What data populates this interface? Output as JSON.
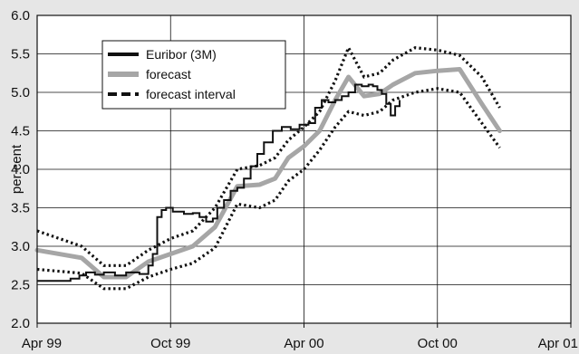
{
  "chart_data": {
    "type": "line",
    "title": "",
    "xlabel": "",
    "ylabel": "per cent",
    "ylim": [
      2.0,
      6.0
    ],
    "yticks": [
      "2.0",
      "2.5",
      "3.0",
      "3.5",
      "4.0",
      "4.5",
      "5.0",
      "5.5",
      "6.0"
    ],
    "xticks": [
      "Apr 99",
      "Oct 99",
      "Apr 00",
      "Oct 00",
      "Apr 01"
    ],
    "grid": "horizontal",
    "legend_position": "top-left",
    "colors": {
      "euribor": "#111111",
      "forecast": "#a6a6a6",
      "interval": "#111111",
      "grid": "#111111",
      "background": "#e6e6e6",
      "plot_background": "#ffffff"
    },
    "series": [
      {
        "name": "Euribor (3M)",
        "style": "solid-black",
        "points": [
          [
            0.0,
            2.55
          ],
          [
            1.0,
            2.55
          ],
          [
            1.5,
            2.58
          ],
          [
            1.9,
            2.62
          ],
          [
            2.2,
            2.66
          ],
          [
            2.6,
            2.63
          ],
          [
            3.0,
            2.66
          ],
          [
            3.5,
            2.62
          ],
          [
            4.0,
            2.66
          ],
          [
            4.6,
            2.64
          ],
          [
            5.0,
            2.75
          ],
          [
            5.2,
            2.9
          ],
          [
            5.4,
            3.38
          ],
          [
            5.6,
            3.47
          ],
          [
            5.8,
            3.5
          ],
          [
            6.1,
            3.45
          ],
          [
            6.6,
            3.42
          ],
          [
            7.0,
            3.43
          ],
          [
            7.3,
            3.38
          ],
          [
            7.6,
            3.32
          ],
          [
            7.9,
            3.36
          ],
          [
            8.1,
            3.5
          ],
          [
            8.4,
            3.6
          ],
          [
            8.7,
            3.72
          ],
          [
            9.0,
            3.76
          ],
          [
            9.3,
            3.88
          ],
          [
            9.6,
            4.04
          ],
          [
            9.9,
            4.2
          ],
          [
            10.2,
            4.35
          ],
          [
            10.6,
            4.5
          ],
          [
            11.0,
            4.55
          ],
          [
            11.4,
            4.52
          ],
          [
            11.8,
            4.58
          ],
          [
            12.2,
            4.6
          ],
          [
            12.5,
            4.8
          ],
          [
            12.8,
            4.9
          ],
          [
            13.1,
            4.87
          ],
          [
            13.4,
            4.9
          ],
          [
            13.7,
            4.95
          ],
          [
            14.0,
            5.0
          ],
          [
            14.3,
            5.1
          ],
          [
            14.6,
            5.08
          ],
          [
            14.9,
            5.1
          ],
          [
            15.1,
            5.08
          ],
          [
            15.3,
            5.03
          ],
          [
            15.5,
            4.98
          ],
          [
            15.7,
            4.85
          ],
          [
            15.9,
            4.7
          ],
          [
            16.1,
            4.82
          ],
          [
            16.3,
            4.9
          ]
        ]
      },
      {
        "name": "forecast",
        "style": "thick-gray",
        "points": [
          [
            0.0,
            2.95
          ],
          [
            2.0,
            2.85
          ],
          [
            3.0,
            2.6
          ],
          [
            4.0,
            2.6
          ],
          [
            5.0,
            2.8
          ],
          [
            6.0,
            2.9
          ],
          [
            7.0,
            3.0
          ],
          [
            8.0,
            3.25
          ],
          [
            9.0,
            3.78
          ],
          [
            10.0,
            3.8
          ],
          [
            10.7,
            3.88
          ],
          [
            11.3,
            4.15
          ],
          [
            12.0,
            4.3
          ],
          [
            12.7,
            4.5
          ],
          [
            13.4,
            4.9
          ],
          [
            14.0,
            5.2
          ],
          [
            14.7,
            4.95
          ],
          [
            15.4,
            4.98
          ],
          [
            16.0,
            5.1
          ],
          [
            17.0,
            5.25
          ],
          [
            18.0,
            5.28
          ],
          [
            19.0,
            5.3
          ],
          [
            20.0,
            4.85
          ],
          [
            20.8,
            4.5
          ]
        ]
      },
      {
        "name": "forecast interval",
        "style": "dotted-black",
        "segments": [
          [
            [
              0.0,
              3.2
            ],
            [
              2.0,
              3.0
            ],
            [
              3.0,
              2.75
            ],
            [
              4.0,
              2.75
            ],
            [
              5.0,
              2.95
            ],
            [
              6.0,
              3.1
            ],
            [
              7.0,
              3.2
            ],
            [
              8.0,
              3.5
            ],
            [
              9.0,
              4.0
            ],
            [
              10.0,
              4.05
            ],
            [
              10.7,
              4.15
            ],
            [
              11.3,
              4.38
            ],
            [
              12.0,
              4.55
            ],
            [
              12.7,
              4.75
            ],
            [
              13.4,
              5.15
            ],
            [
              14.0,
              5.58
            ],
            [
              14.7,
              5.2
            ],
            [
              15.4,
              5.25
            ],
            [
              16.0,
              5.42
            ],
            [
              17.0,
              5.58
            ],
            [
              18.0,
              5.55
            ],
            [
              19.0,
              5.48
            ],
            [
              20.0,
              5.2
            ],
            [
              20.8,
              4.8
            ]
          ],
          [
            [
              0.0,
              2.7
            ],
            [
              2.0,
              2.65
            ],
            [
              3.0,
              2.45
            ],
            [
              4.0,
              2.45
            ],
            [
              5.0,
              2.6
            ],
            [
              6.0,
              2.7
            ],
            [
              7.0,
              2.78
            ],
            [
              8.0,
              2.98
            ],
            [
              9.0,
              3.55
            ],
            [
              10.0,
              3.5
            ],
            [
              10.7,
              3.6
            ],
            [
              11.3,
              3.85
            ],
            [
              12.0,
              4.0
            ],
            [
              12.7,
              4.25
            ],
            [
              13.4,
              4.55
            ],
            [
              14.0,
              4.75
            ],
            [
              14.7,
              4.7
            ],
            [
              15.4,
              4.75
            ],
            [
              16.0,
              4.9
            ],
            [
              17.0,
              5.0
            ],
            [
              18.0,
              5.05
            ],
            [
              19.0,
              5.0
            ],
            [
              20.0,
              4.6
            ],
            [
              20.8,
              4.28
            ]
          ]
        ]
      }
    ]
  }
}
